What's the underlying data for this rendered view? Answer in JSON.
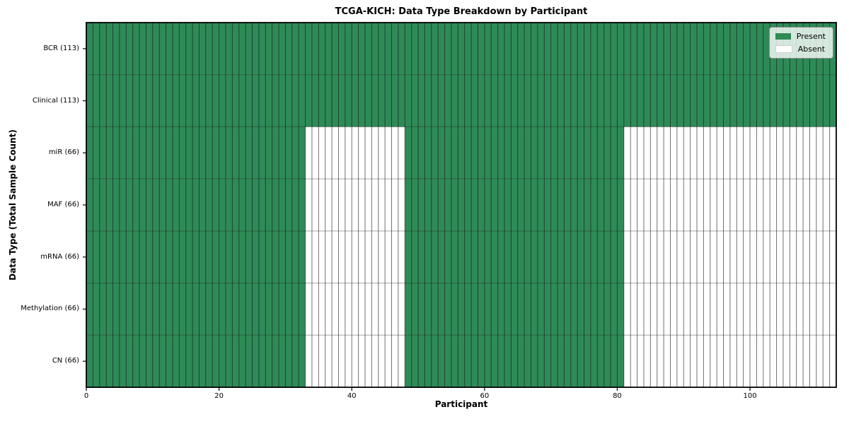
{
  "chart_data": {
    "type": "heatmap",
    "title": "TCGA-KICH: Data Type Breakdown by Participant",
    "xlabel": "Participant",
    "ylabel": "Data Type (Total Sample Count)",
    "x_ticks": [
      0,
      20,
      40,
      60,
      80,
      100
    ],
    "xlim": [
      0,
      113
    ],
    "n_participants": 113,
    "legend_position": "upper right",
    "legend": [
      {
        "label": "Present",
        "color": "#2e8b57"
      },
      {
        "label": "Absent",
        "color": "#ffffff"
      }
    ],
    "rows": [
      {
        "label": "BCR (113)",
        "total": 113,
        "present_ranges": [
          [
            0,
            113
          ]
        ]
      },
      {
        "label": "Clinical (113)",
        "total": 113,
        "present_ranges": [
          [
            0,
            113
          ]
        ]
      },
      {
        "label": "miR (66)",
        "total": 66,
        "present_ranges": [
          [
            0,
            33
          ],
          [
            48,
            81
          ]
        ]
      },
      {
        "label": "MAF (66)",
        "total": 66,
        "present_ranges": [
          [
            0,
            33
          ],
          [
            48,
            81
          ]
        ]
      },
      {
        "label": "mRNA (66)",
        "total": 66,
        "present_ranges": [
          [
            0,
            33
          ],
          [
            48,
            81
          ]
        ]
      },
      {
        "label": "Methylation (66)",
        "total": 66,
        "present_ranges": [
          [
            0,
            33
          ],
          [
            48,
            81
          ]
        ]
      },
      {
        "label": "CN (66)",
        "total": 66,
        "present_ranges": [
          [
            0,
            33
          ],
          [
            48,
            81
          ]
        ]
      }
    ],
    "colors": {
      "present": "#2e8b57",
      "absent": "#ffffff",
      "cell_edge": "rgba(20,20,20,0.6)",
      "row_edge": "rgba(0,0,0,0.35)",
      "spine": "#000000"
    }
  }
}
